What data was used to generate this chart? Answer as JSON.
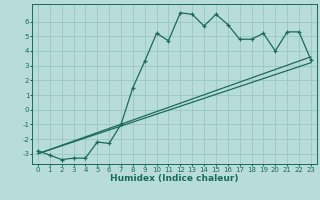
{
  "xlabel": "Humidex (Indice chaleur)",
  "background_color": "#b8ddd8",
  "grid_color": "#96c8c0",
  "line_color": "#1a6b5a",
  "xlim": [
    -0.5,
    23.5
  ],
  "ylim": [
    -3.7,
    7.2
  ],
  "yticks": [
    -3,
    -2,
    -1,
    0,
    1,
    2,
    3,
    4,
    5,
    6
  ],
  "xticks": [
    0,
    1,
    2,
    3,
    4,
    5,
    6,
    7,
    8,
    9,
    10,
    11,
    12,
    13,
    14,
    15,
    16,
    17,
    18,
    19,
    20,
    21,
    22,
    23
  ],
  "line1_x": [
    0,
    1,
    2,
    3,
    4,
    5,
    6,
    7,
    8,
    9,
    10,
    11,
    12,
    13,
    14,
    15,
    16,
    17,
    18,
    19,
    20,
    21,
    22,
    23
  ],
  "line1_y": [
    -2.8,
    -3.1,
    -3.4,
    -3.3,
    -3.3,
    -2.2,
    -2.3,
    -1.0,
    1.5,
    3.3,
    5.2,
    4.7,
    6.6,
    6.5,
    5.7,
    6.5,
    5.8,
    4.8,
    4.8,
    5.2,
    4.0,
    5.3,
    5.3,
    3.4
  ],
  "line2_x": [
    0,
    23
  ],
  "line2_y": [
    -3.0,
    3.6
  ],
  "line3_x": [
    0,
    23
  ],
  "line3_y": [
    -3.0,
    3.2
  ]
}
